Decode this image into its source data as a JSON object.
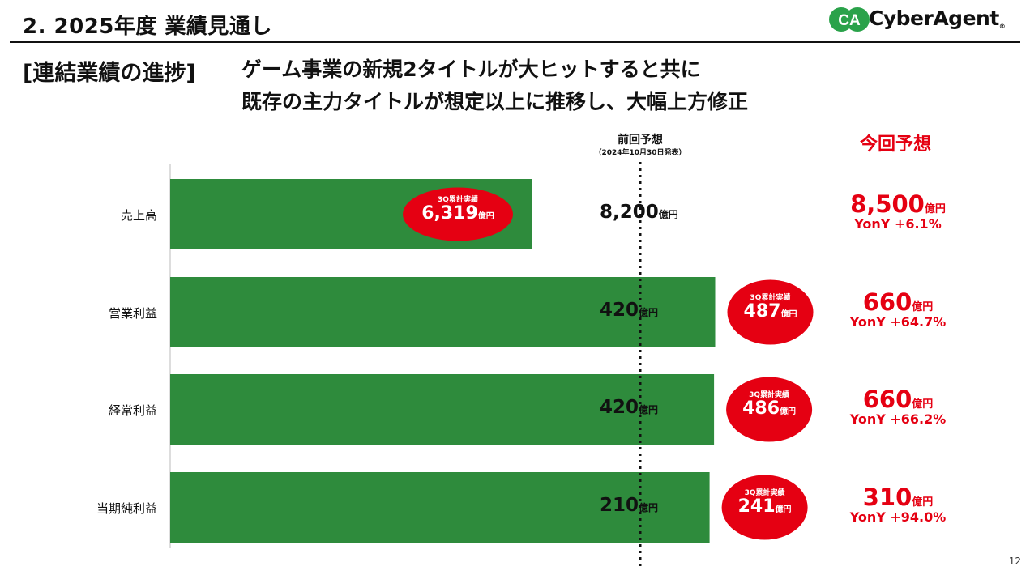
{
  "header": {
    "title": "2.  2025年度 業績見通し",
    "logo_text": "CyberAgent",
    "logo_mark": "CA",
    "logo_reg": "®"
  },
  "subheading": {
    "tag": "[連結業績の進捗]",
    "line1": "ゲーム事業の新規2タイトルが大ヒットすると共に",
    "line2": "既存の主力タイトルが想定以上に推移し、大幅上方修正"
  },
  "columns": {
    "previous_title": "前回予想",
    "previous_note": "（2024年10月30日発表）",
    "current_title": "今回予想"
  },
  "colors": {
    "bar": "#2e8b3c",
    "ellipse": "#e50012",
    "accent": "#e50012",
    "dotted_line": "#111111"
  },
  "chart_data": {
    "type": "bar",
    "orientation": "horizontal",
    "unit": "億円",
    "ellipse_caption": "3Q累計実績",
    "categories": [
      "売上高",
      "営業利益",
      "経常利益",
      "当期純利益"
    ],
    "series": [
      {
        "name": "3Q累計実績",
        "display": [
          "6,319",
          "487",
          "486",
          "241"
        ],
        "values": [
          6319,
          487,
          486,
          241
        ]
      },
      {
        "name": "前回予想",
        "display": [
          "8,200",
          "420",
          "420",
          "210"
        ],
        "values": [
          8200,
          420,
          420,
          210
        ]
      },
      {
        "name": "今回予想",
        "display": [
          "8,500",
          "660",
          "660",
          "310"
        ],
        "values": [
          8500,
          660,
          660,
          310
        ],
        "yoy": [
          "YonY +6.1%",
          "YonY +64.7%",
          "YonY +66.2%",
          "YonY +94.0%"
        ]
      }
    ]
  },
  "page": {
    "number": "12"
  }
}
